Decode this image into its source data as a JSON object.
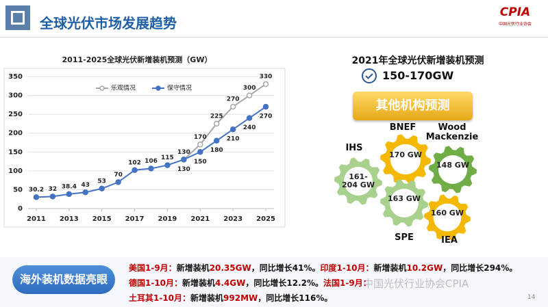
{
  "header": {
    "title": "全球光伏市场发展趋势"
  },
  "logo": {
    "text": "CPIA",
    "subtitle": "中国光伏行业协会"
  },
  "chart_data": {
    "type": "line",
    "title": "2011-2025全球光伏新增装机预测（GW）",
    "x": [
      2011,
      2012,
      2013,
      2014,
      2015,
      2016,
      2017,
      2018,
      2019,
      2020,
      2021,
      2022,
      2023,
      2024,
      2025
    ],
    "series": [
      {
        "name": "乐观情况",
        "color": "#a6a6a6",
        "values": [
          null,
          null,
          null,
          null,
          null,
          null,
          null,
          null,
          null,
          130,
          170,
          225,
          270,
          300,
          330
        ]
      },
      {
        "name": "保守情况",
        "color": "#4472c4",
        "values": [
          30.2,
          32,
          38.4,
          43,
          53,
          70,
          102,
          106,
          115,
          130,
          150,
          180,
          210,
          240,
          270
        ]
      }
    ],
    "xlim": [
      2010.5,
      2025.5
    ],
    "xticks": [
      2011,
      2013,
      2015,
      2017,
      2019,
      2021,
      2023,
      2025
    ],
    "ylim": [
      0,
      350
    ],
    "yticks": [
      0,
      50,
      100,
      150,
      200,
      250,
      300,
      350
    ],
    "grid": true
  },
  "forecast": {
    "title": "2021年全球光伏新增装机预测",
    "range": "150-170GW",
    "button": "其他机构预测",
    "institutions": [
      {
        "name": "IHS",
        "value": "161-204 GW"
      },
      {
        "name": "BNEF",
        "value": "170 GW"
      },
      {
        "name": "Wood Mackenzie",
        "value": "148 GW"
      },
      {
        "name": "SPE",
        "value": "163 GW"
      },
      {
        "name": "IEA",
        "value": "160 GW"
      }
    ]
  },
  "overseas": {
    "title": "海外装机数据亮眼",
    "lines": [
      [
        {
          "text": "美国1-9月：",
          "color": "#c00000"
        },
        {
          "text": "新增装机"
        },
        {
          "text": "20.35GW",
          "color": "#c00000"
        },
        {
          "text": "，同比增长41%。"
        },
        {
          "text": "印度1-10月：",
          "color": "#c00000"
        },
        {
          "text": "新增装机"
        },
        {
          "text": "10.2GW",
          "color": "#c00000"
        },
        {
          "text": "，同比增长294%。"
        }
      ],
      [
        {
          "text": "德国1-10月：",
          "color": "#c00000"
        },
        {
          "text": "新增装机"
        },
        {
          "text": "4.4GW",
          "color": "#c00000"
        },
        {
          "text": "，同比增长12.2%。"
        },
        {
          "text": "法国1-9月：",
          "color": "#c00000"
        }
      ],
      [
        {
          "text": "土耳其1-10月：",
          "color": "#c00000"
        },
        {
          "text": "新增装机"
        },
        {
          "text": "992MW",
          "color": "#c00000"
        },
        {
          "text": "，同比增长116%。"
        }
      ]
    ],
    "watermark": "中国光伏行业协会CPIA"
  },
  "page_number": "14"
}
